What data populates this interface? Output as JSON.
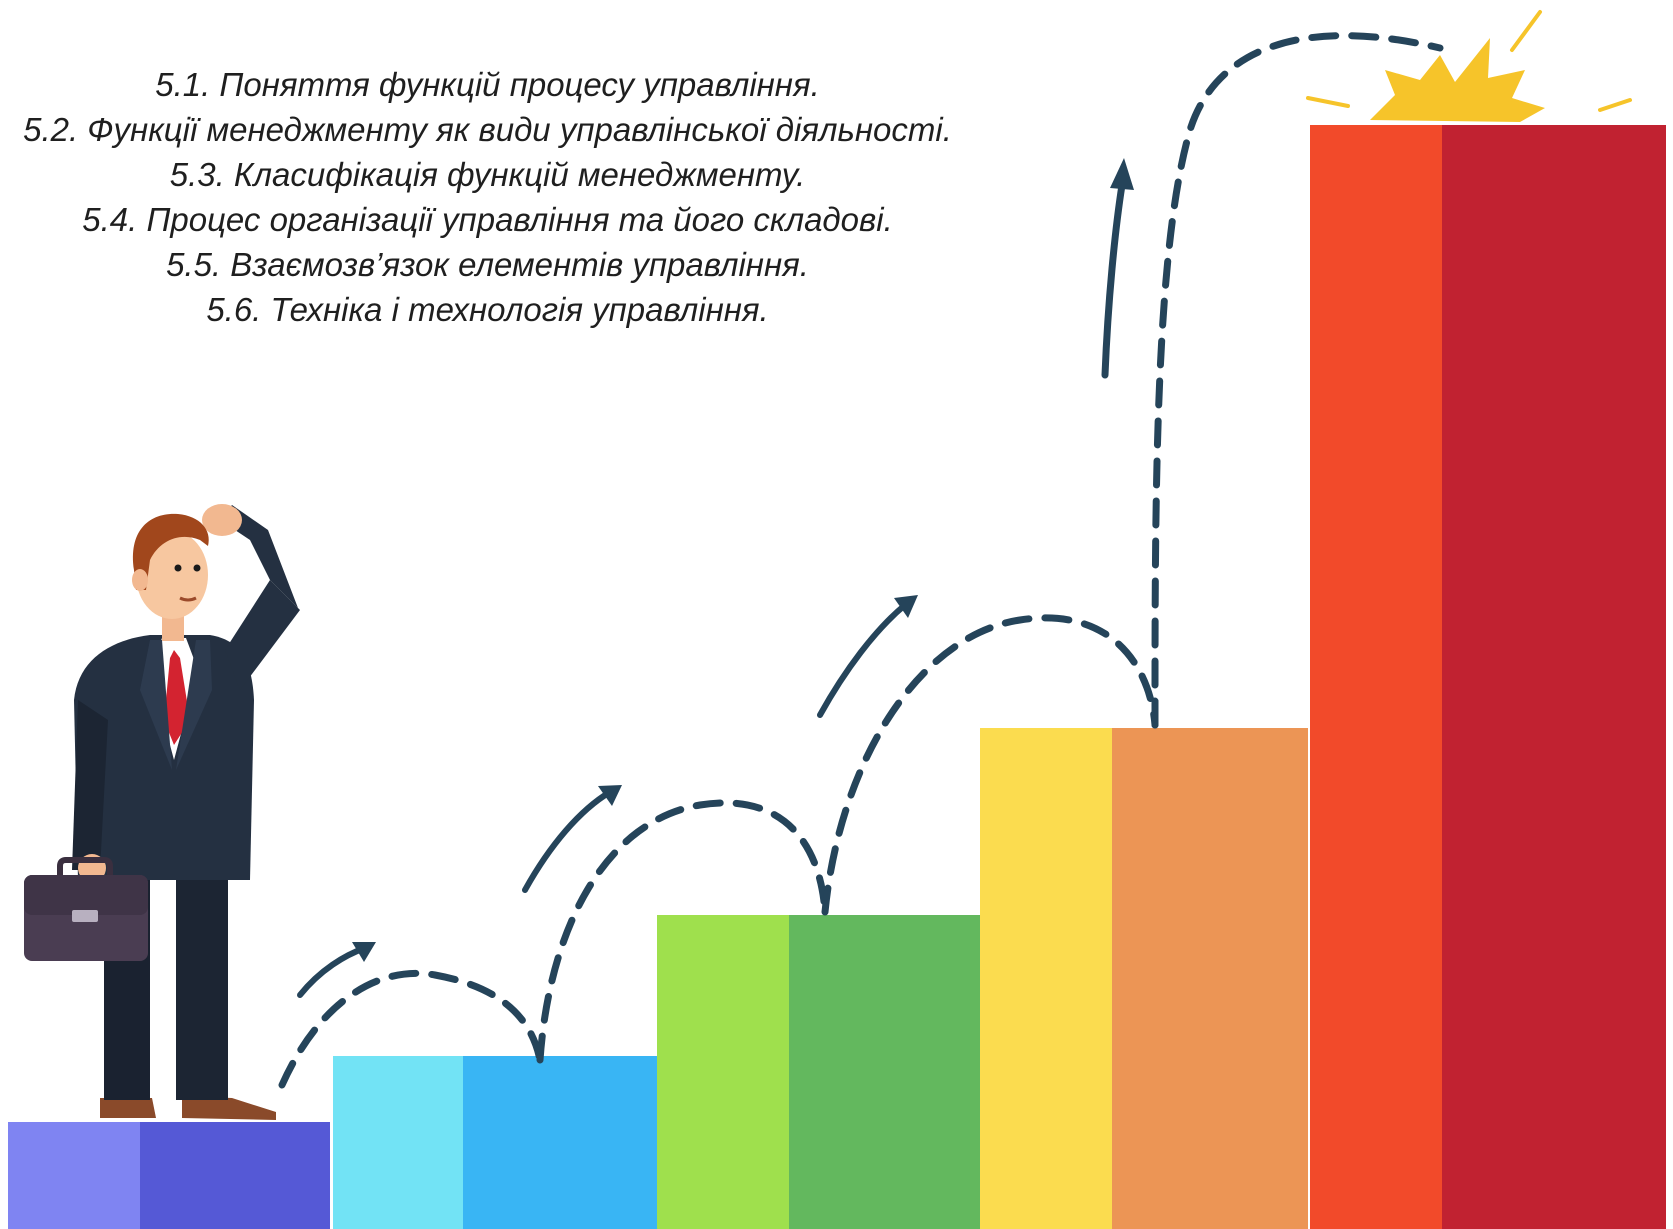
{
  "topics": [
    "5.1. Поняття функцій процесу управління.",
    "5.2. Функції менеджменту як види управлінської діяльності.",
    "5.3. Класифікація функцій менеджменту.",
    "5.4. Процес організації управління та його складові.",
    "5.5. Взаємозв’язок елементів управління.",
    "5.6. Техніка і технологія управління."
  ],
  "colors": {
    "step1": [
      "#7f84f2",
      "#5559d6"
    ],
    "step2": [
      "#72e3f5",
      "#39b5f4"
    ],
    "step3": [
      "#9fe04d",
      "#63b85e"
    ],
    "step4": [
      "#fbdc4f",
      "#ec9555"
    ],
    "step5": [
      "#f24a2a",
      "#c12231"
    ],
    "arrows": "#25445a",
    "burst": "#f6c42a"
  },
  "illustration": {
    "figure": "businessman-with-briefcase",
    "scene": "rising-bar-steps-with-dashed-jump-arrows"
  }
}
